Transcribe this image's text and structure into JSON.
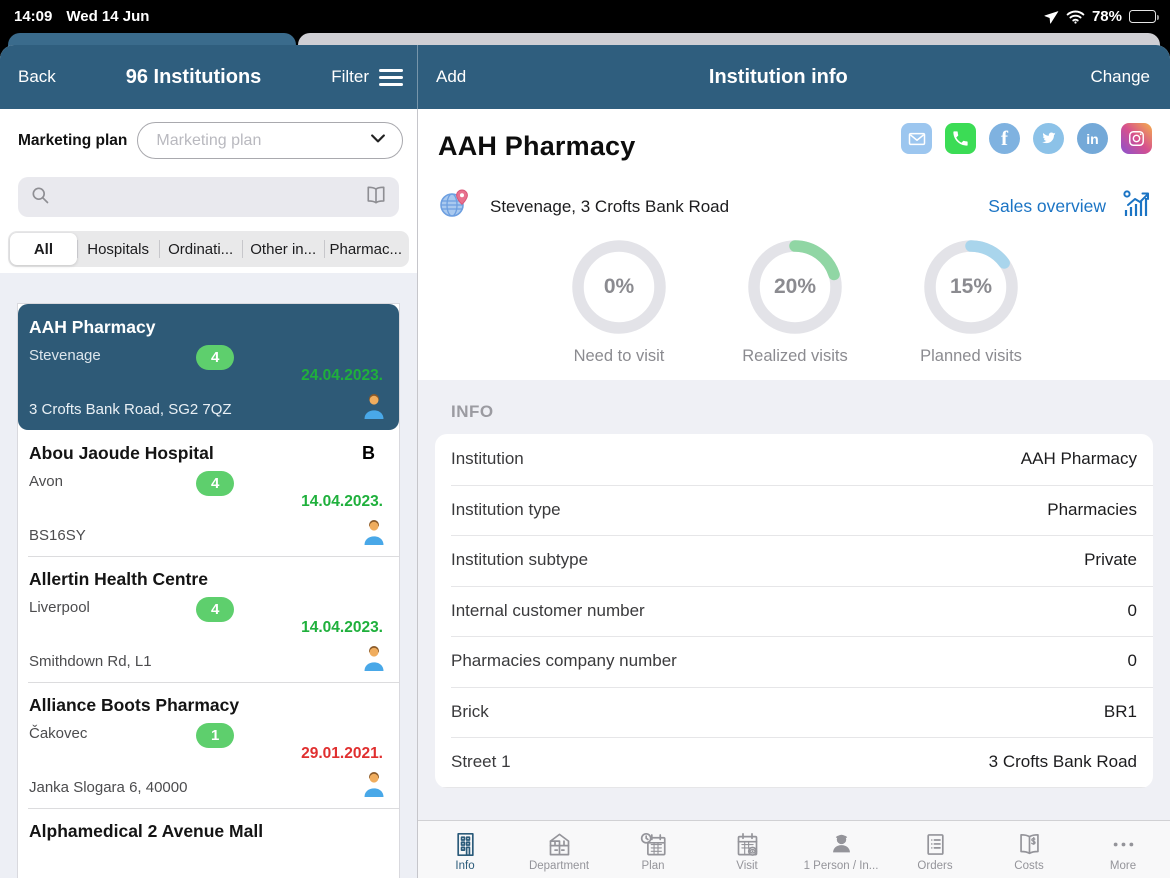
{
  "status_bar": {
    "time": "14:09",
    "date": "Wed 14 Jun",
    "battery": "78%"
  },
  "left_nav": {
    "back": "Back",
    "title": "96 Institutions",
    "filter": "Filter"
  },
  "right_nav": {
    "add": "Add",
    "title": "Institution info",
    "change": "Change"
  },
  "sidebar": {
    "marketing_plan_label": "Marketing plan",
    "marketing_plan_placeholder": "Marketing plan",
    "filter_tabs": [
      "All",
      "Hospitals",
      "Ordinati...",
      "Other in...",
      "Pharmac..."
    ],
    "institutions": [
      {
        "name": "AAH Pharmacy",
        "letter": "",
        "city": "Stevenage",
        "badge": "4",
        "date": "24.04.2023.",
        "date_color": "green",
        "address": "3 Crofts Bank Road, SG2 7QZ",
        "selected": true
      },
      {
        "name": "Abou Jaoude Hospital",
        "letter": "B",
        "city": "Avon",
        "badge": "4",
        "date": "14.04.2023.",
        "date_color": "green",
        "address": "BS16SY",
        "selected": false
      },
      {
        "name": "Allertin Health Centre",
        "letter": "",
        "city": "Liverpool",
        "badge": "4",
        "date": "14.04.2023.",
        "date_color": "green",
        "address": "Smithdown Rd, L1",
        "selected": false
      },
      {
        "name": "Alliance Boots Pharmacy",
        "letter": "",
        "city": "Čakovec",
        "badge": "1",
        "date": "29.01.2021.",
        "date_color": "red",
        "address": "Janka Slogara 6, 40000",
        "selected": false
      },
      {
        "name": "Alphamedical 2 Avenue Mall",
        "letter": "",
        "city": "",
        "badge": "",
        "date": "",
        "date_color": "",
        "address": "",
        "selected": false
      }
    ]
  },
  "detail": {
    "title": "AAH Pharmacy",
    "address": "Stevenage, 3 Crofts Bank Road",
    "sales_overview_label": "Sales overview",
    "social_icons": [
      "email",
      "phone",
      "facebook",
      "twitter",
      "linkedin",
      "instagram"
    ],
    "donuts": [
      {
        "pct": 0,
        "pct_label": "0%",
        "label": "Need to visit",
        "color": "#e3e3e8"
      },
      {
        "pct": 20,
        "pct_label": "20%",
        "label": "Realized visits",
        "color": "#90d6a4"
      },
      {
        "pct": 15,
        "pct_label": "15%",
        "label": "Planned visits",
        "color": "#a9d5ec"
      }
    ],
    "info_section_title": "INFO",
    "info_rows": [
      {
        "label": "Institution",
        "value": "AAH Pharmacy"
      },
      {
        "label": "Institution type",
        "value": "Pharmacies"
      },
      {
        "label": "Institution subtype",
        "value": "Private"
      },
      {
        "label": "Internal customer number",
        "value": "0"
      },
      {
        "label": "Pharmacies company number",
        "value": "0"
      },
      {
        "label": "Brick",
        "value": "BR1"
      },
      {
        "label": "Street 1",
        "value": "3 Crofts Bank Road"
      }
    ]
  },
  "tab_bar": [
    {
      "label": "Info",
      "icon": "building-grid",
      "selected": true
    },
    {
      "label": "Department",
      "icon": "department-building",
      "selected": false
    },
    {
      "label": "Plan",
      "icon": "calendar-clock",
      "selected": false
    },
    {
      "label": "Visit",
      "icon": "calendar-eye",
      "selected": false
    },
    {
      "label": "1  Person / In...",
      "icon": "person",
      "selected": false
    },
    {
      "label": "Orders",
      "icon": "orders-list",
      "selected": false
    },
    {
      "label": "Costs",
      "icon": "costs-book",
      "selected": false
    },
    {
      "label": "More",
      "icon": "more-ellipsis",
      "selected": false
    }
  ],
  "colors": {
    "navbar": "#2f5e7e",
    "selected_item": "#2e5a77",
    "badge_green": "#5ecf6d",
    "date_green": "#1fb03c",
    "date_red": "#e02f2f",
    "link_blue": "#1b74c4",
    "donut_track": "#e3e3e8",
    "donut_green": "#90d6a4",
    "donut_blue": "#a9d5ec",
    "tab_selected": "#2b5b7a"
  }
}
